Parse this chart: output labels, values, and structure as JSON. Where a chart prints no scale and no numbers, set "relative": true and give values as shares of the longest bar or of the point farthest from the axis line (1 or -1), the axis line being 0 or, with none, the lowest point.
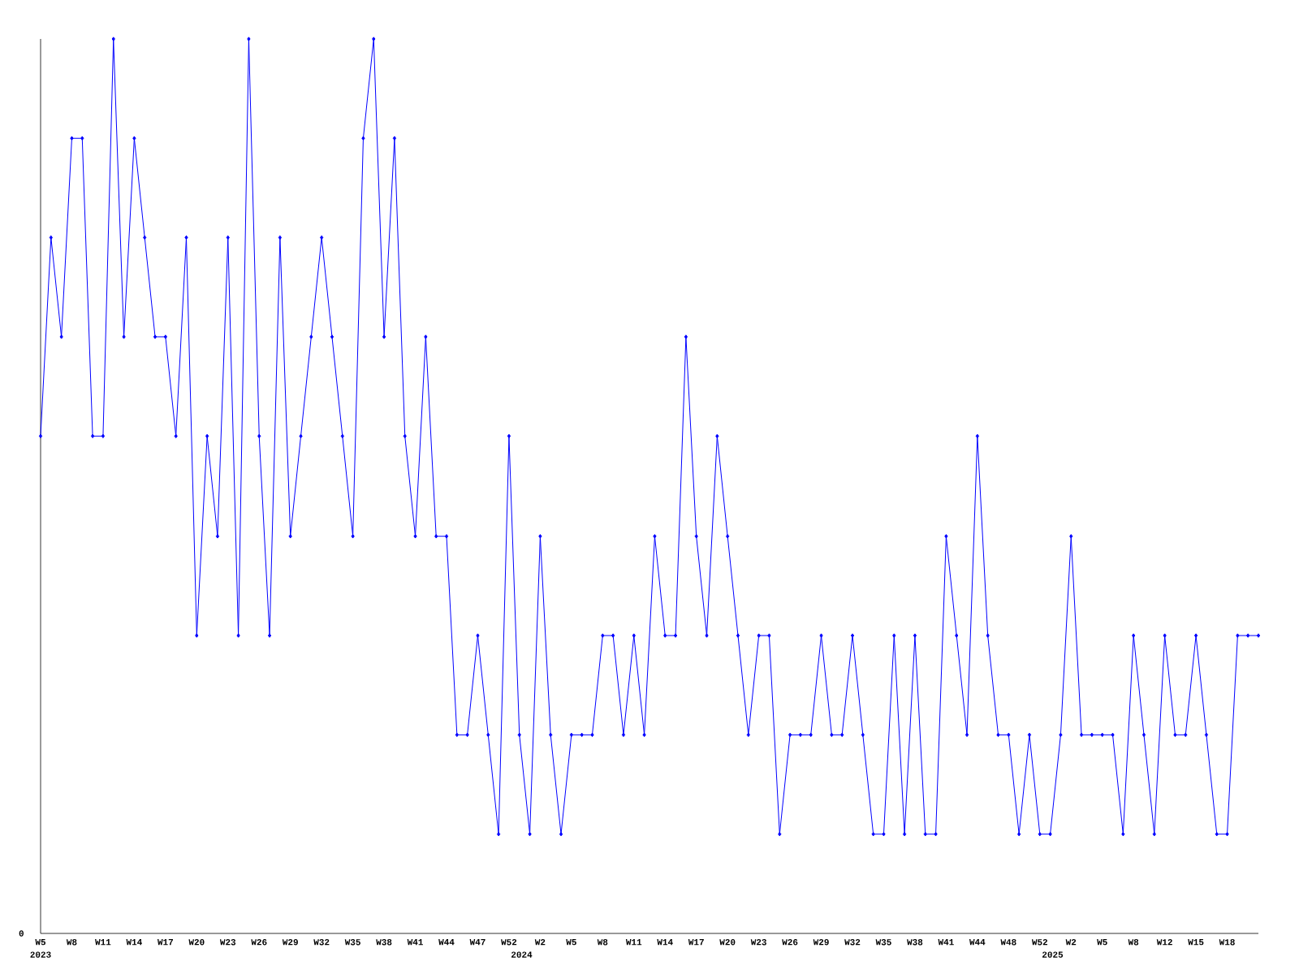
{
  "chart_data": {
    "type": "line",
    "relative": true,
    "marker": "diamond",
    "line_style": "solid",
    "categories": [
      "W5",
      null,
      null,
      "W8",
      null,
      null,
      "W11",
      null,
      null,
      "W14",
      null,
      null,
      "W17",
      null,
      null,
      "W20",
      null,
      null,
      "W23",
      null,
      null,
      "W26",
      null,
      null,
      "W29",
      null,
      null,
      "W32",
      null,
      null,
      "W35",
      null,
      null,
      "W38",
      null,
      null,
      "W41",
      null,
      null,
      "W44",
      null,
      null,
      "W47",
      null,
      null,
      "W52",
      null,
      null,
      "W2",
      null,
      null,
      "W5",
      null,
      null,
      "W8",
      null,
      null,
      "W11",
      null,
      null,
      "W14",
      null,
      null,
      "W17",
      null,
      null,
      "W20",
      null,
      null,
      "W23",
      null,
      null,
      "W26",
      null,
      null,
      "W29",
      null,
      null,
      "W32",
      null,
      null,
      "W35",
      null,
      null,
      "W38",
      null,
      null,
      "W41",
      null,
      null,
      "W44",
      null,
      null,
      "W48",
      null,
      null,
      "W52",
      null,
      null,
      "W2",
      null,
      null,
      "W5",
      null,
      null,
      "W8",
      null,
      null,
      "W12",
      null,
      null,
      "W15",
      null,
      null,
      "W18",
      null,
      null,
      null
    ],
    "series": [
      {
        "color": "#0000ff",
        "values": [
          0.556,
          0.778,
          0.667,
          0.889,
          0.889,
          0.556,
          0.556,
          1,
          0.667,
          0.889,
          0.778,
          0.667,
          0.667,
          0.556,
          0.778,
          0.333,
          0.556,
          0.444,
          0.778,
          0.333,
          1,
          0.556,
          0.333,
          0.778,
          0.444,
          0.556,
          0.667,
          0.778,
          0.667,
          0.556,
          0.444,
          0.889,
          1,
          0.667,
          0.889,
          0.556,
          0.444,
          0.667,
          0.444,
          0.444,
          0.222,
          0.222,
          0.333,
          0.222,
          0.111,
          0.556,
          0.222,
          0.111,
          0.444,
          0.222,
          0.111,
          0.222,
          0.222,
          0.222,
          0.333,
          0.333,
          0.222,
          0.333,
          0.222,
          0.444,
          0.333,
          0.333,
          0.667,
          0.444,
          0.333,
          0.556,
          0.444,
          0.333,
          0.222,
          0.333,
          0.333,
          0.111,
          0.222,
          0.222,
          0.222,
          0.333,
          0.222,
          0.222,
          0.333,
          0.222,
          0.111,
          0.111,
          0.333,
          0.111,
          0.333,
          0.111,
          0.111,
          0.444,
          0.333,
          0.222,
          0.556,
          0.333,
          0.222,
          0.222,
          0.111,
          0.222,
          0.111,
          0.111,
          0.222,
          0.444,
          0.222,
          0.222,
          0.222,
          0.222,
          0.111,
          0.333,
          0.222,
          0.111,
          0.333,
          0.222,
          0.222,
          0.333,
          0.222,
          0.111,
          0.111,
          0.333,
          0.333,
          0.333
        ]
      }
    ],
    "annotations": [
      "0",
      "2023",
      "2024",
      "2025"
    ]
  }
}
